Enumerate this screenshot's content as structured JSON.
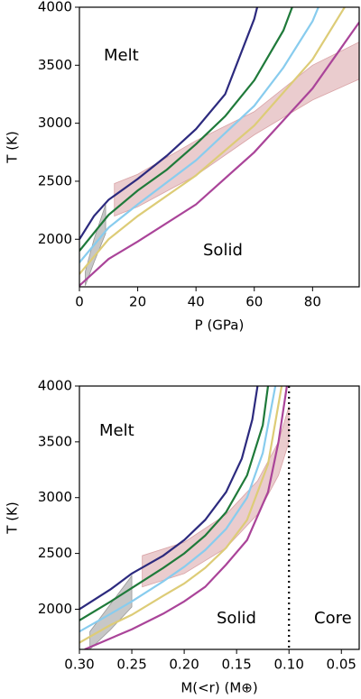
{
  "chart_data": [
    {
      "type": "line",
      "xlabel": "P (GPa)",
      "ylabel": "T (K)",
      "xlim": [
        0,
        96
      ],
      "ylim": [
        1590,
        4000
      ],
      "xticks": [
        0,
        20,
        40,
        60,
        80
      ],
      "yticks": [
        2000,
        2500,
        3000,
        3500,
        4000
      ],
      "annotations": [
        "Melt",
        "Solid"
      ],
      "bands": [
        {
          "color": "#999999",
          "x": [
            2,
            5,
            9
          ],
          "lower": [
            1600,
            1800,
            2050
          ],
          "upper": [
            1720,
            2000,
            2300
          ]
        },
        {
          "color": "#d9a3a6",
          "x": [
            12,
            20,
            40,
            60,
            80,
            96
          ],
          "lower": [
            2200,
            2280,
            2550,
            2900,
            3200,
            3380
          ],
          "upper": [
            2480,
            2560,
            2850,
            3100,
            3500,
            3700
          ]
        }
      ],
      "series": [
        {
          "color": "#2c2a7e",
          "x": [
            0,
            5,
            10,
            20,
            30,
            40,
            50,
            60,
            61
          ],
          "values": [
            2000,
            2200,
            2340,
            2520,
            2720,
            2950,
            3250,
            3900,
            4000
          ]
        },
        {
          "color": "#1f7a3a",
          "x": [
            0,
            10,
            20,
            30,
            40,
            50,
            60,
            70,
            73
          ],
          "values": [
            1900,
            2210,
            2420,
            2600,
            2820,
            3060,
            3370,
            3800,
            4000
          ]
        },
        {
          "color": "#88ccee",
          "x": [
            0,
            10,
            20,
            40,
            60,
            70,
            80,
            82
          ],
          "values": [
            1800,
            2100,
            2300,
            2680,
            3150,
            3480,
            3880,
            4000
          ]
        },
        {
          "color": "#ddcc77",
          "x": [
            0,
            10,
            20,
            40,
            60,
            80,
            91
          ],
          "values": [
            1700,
            2000,
            2200,
            2550,
            2980,
            3550,
            4000
          ]
        },
        {
          "color": "#aa4499",
          "x": [
            0,
            10,
            20,
            40,
            60,
            80,
            96
          ],
          "values": [
            1600,
            1830,
            1980,
            2300,
            2750,
            3300,
            3870
          ]
        }
      ]
    },
    {
      "type": "line",
      "xlabel": "M(<r) (M⊕)",
      "ylabel": "T (K)",
      "xlim": [
        0.3,
        0.033
      ],
      "ylim": [
        1640,
        4000
      ],
      "xticks": [
        {
          "value": 0.3,
          "label": "0.30"
        },
        0.25,
        {
          "value": 0.2,
          "label": "0.20"
        },
        0.15,
        {
          "value": 0.1,
          "label": "0.10"
        },
        0.05
      ],
      "yticks": [
        2000,
        2500,
        3000,
        3500,
        4000
      ],
      "annotations": [
        "Melt",
        "Solid",
        "Core"
      ],
      "vline": 0.1,
      "bands": [
        {
          "color": "#999999",
          "x": [
            0.29,
            0.27,
            0.25
          ],
          "lower": [
            1640,
            1820,
            2020
          ],
          "upper": [
            1800,
            2050,
            2300
          ]
        },
        {
          "color": "#d9a3a6",
          "x": [
            0.24,
            0.2,
            0.16,
            0.13,
            0.11,
            0.1
          ],
          "lower": [
            2200,
            2320,
            2550,
            2850,
            3200,
            3500
          ],
          "upper": [
            2480,
            2600,
            2850,
            3150,
            3500,
            3820
          ]
        }
      ],
      "series": [
        {
          "color": "#2c2a7e",
          "x": [
            0.3,
            0.27,
            0.25,
            0.22,
            0.2,
            0.18,
            0.16,
            0.145,
            0.135,
            0.13
          ],
          "values": [
            2000,
            2180,
            2320,
            2480,
            2620,
            2800,
            3050,
            3350,
            3700,
            4000
          ]
        },
        {
          "color": "#1f7a3a",
          "x": [
            0.3,
            0.27,
            0.25,
            0.22,
            0.2,
            0.18,
            0.16,
            0.14,
            0.125,
            0.12
          ],
          "values": [
            1900,
            2070,
            2190,
            2370,
            2500,
            2660,
            2870,
            3200,
            3650,
            4000
          ]
        },
        {
          "color": "#88ccee",
          "x": [
            0.3,
            0.27,
            0.25,
            0.22,
            0.2,
            0.18,
            0.16,
            0.14,
            0.125,
            0.113
          ],
          "values": [
            1800,
            1960,
            2070,
            2250,
            2380,
            2530,
            2720,
            3000,
            3400,
            4000
          ]
        },
        {
          "color": "#ddcc77",
          "x": [
            0.3,
            0.27,
            0.25,
            0.22,
            0.2,
            0.18,
            0.16,
            0.14,
            0.12,
            0.107
          ],
          "values": [
            1700,
            1860,
            1950,
            2120,
            2230,
            2370,
            2550,
            2800,
            3300,
            4000
          ]
        },
        {
          "color": "#aa4499",
          "x": [
            0.295,
            0.28,
            0.25,
            0.22,
            0.2,
            0.18,
            0.16,
            0.14,
            0.12,
            0.11,
            0.102
          ],
          "values": [
            1640,
            1700,
            1820,
            1960,
            2070,
            2200,
            2400,
            2620,
            3050,
            3500,
            4000
          ]
        }
      ]
    }
  ]
}
